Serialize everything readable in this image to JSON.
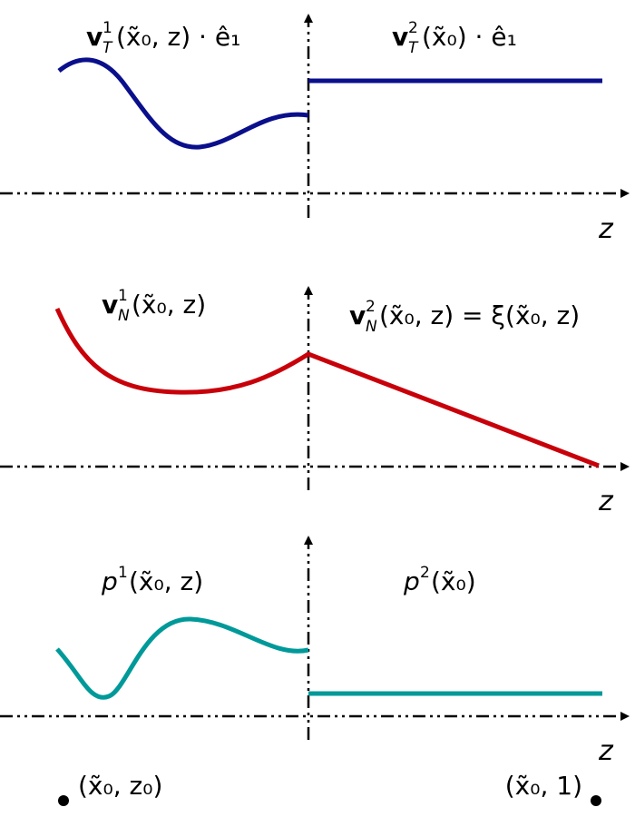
{
  "panels": [
    {
      "left_label": {
        "base": "v",
        "sup": "1",
        "sub": "T",
        "rest": "(x̃₀, z) · ê₁"
      },
      "right_label": {
        "base": "v",
        "sup": "2",
        "sub": "T",
        "rest": "(x̃₀) · ê₁"
      },
      "axis_label": "z"
    },
    {
      "left_label": {
        "base": "v",
        "sup": "1",
        "sub": "N",
        "rest": "(x̃₀, z)"
      },
      "right_label": {
        "base": "v",
        "sup": "2",
        "sub": "N",
        "rest": "(x̃₀, z) = ξ(x̃₀, z)"
      },
      "axis_label": "z"
    },
    {
      "left_label": {
        "base": "p",
        "sup": "1",
        "rest": "(x̃₀, z)"
      },
      "right_label": {
        "base": "p",
        "sup": "2",
        "rest": "(x̃₀)"
      },
      "axis_label": "z"
    }
  ],
  "points": [
    {
      "label": "(x̃₀, z₀)"
    },
    {
      "label": "(x̃₀, 1)"
    }
  ]
}
